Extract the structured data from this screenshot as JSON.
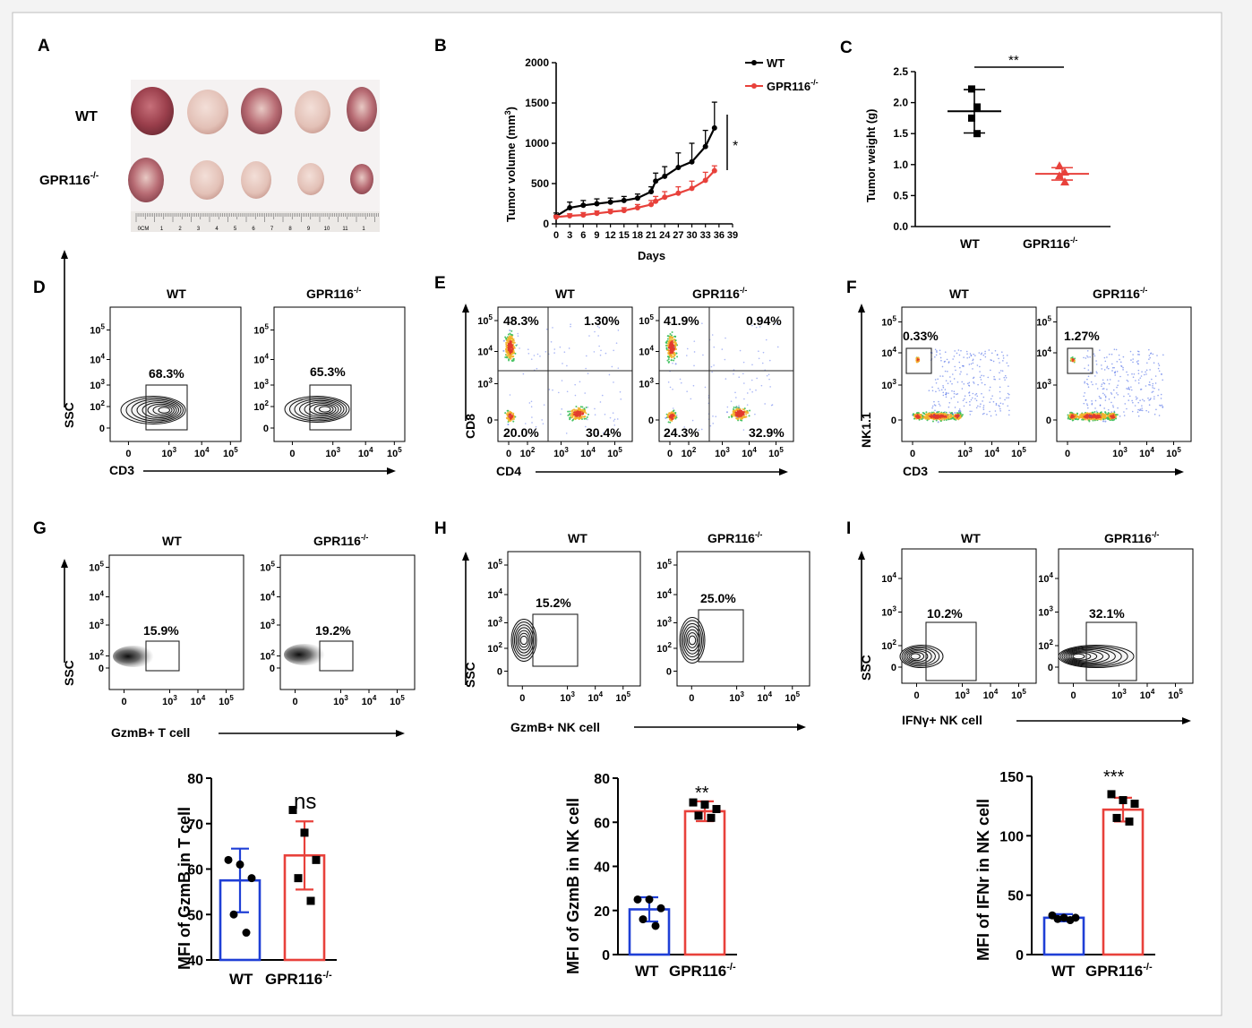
{
  "colors": {
    "wt": "#000000",
    "ko": "#e8413b",
    "bar_wt": "#1f3fd6",
    "bar_ko": "#e8413b"
  },
  "panelA": {
    "letter": "A",
    "row_wt": "WT",
    "row_ko": "GPR116",
    "ko_sup": "-/-",
    "ruler_ticks": [
      "0CM",
      "1",
      "2",
      "3",
      "4",
      "5",
      "6",
      "7",
      "8",
      "9",
      "10",
      "11",
      "1"
    ]
  },
  "panelB": {
    "letter": "B",
    "ylabel": "Tumor volume (mm",
    "ylabel_sup": "3",
    "ylabel_end": ")",
    "xlabel": "Days",
    "legend_wt": "WT",
    "legend_ko": "GPR116",
    "legend_sup": "-/-",
    "sig": "*"
  },
  "panelC": {
    "letter": "C",
    "ylabel": "Tumor weight (g)",
    "cat_wt": "WT",
    "cat_ko": "GPR116",
    "cat_sup": "-/-",
    "sig": "**"
  },
  "panelD": {
    "letter": "D",
    "title_wt": "WT",
    "title_ko": "GPR116",
    "title_sup": "-/-",
    "pct_wt": "68.3%",
    "pct_ko": "65.3%",
    "ylabel": "SSC",
    "xlabel": "CD3"
  },
  "panelE": {
    "letter": "E",
    "title_wt": "WT",
    "title_ko": "GPR116",
    "title_sup": "-/-",
    "wt_q": [
      "48.3%",
      "1.30%",
      "20.0%",
      "30.4%"
    ],
    "ko_q": [
      "41.9%",
      "0.94%",
      "24.3%",
      "32.9%"
    ],
    "ylabel": "CD8",
    "xlabel": "CD4"
  },
  "panelF": {
    "letter": "F",
    "title_wt": "WT",
    "title_ko": "GPR116",
    "title_sup": "-/-",
    "pct_wt": "0.33%",
    "pct_ko": "1.27%",
    "ylabel": "NK1.1",
    "xlabel": "CD3"
  },
  "panelG": {
    "letter": "G",
    "title_wt": "WT",
    "title_ko": "GPR116",
    "title_sup": "-/-",
    "pct_wt": "15.9%",
    "pct_ko": "19.2%",
    "ylabel": "SSC",
    "xlabel": "GzmB+ T cell",
    "bar_ylabel": "MFI of GzmB in T cell",
    "sig": "ns"
  },
  "panelH": {
    "letter": "H",
    "title_wt": "WT",
    "title_ko": "GPR116",
    "title_sup": "-/-",
    "pct_wt": "15.2%",
    "pct_ko": "25.0%",
    "ylabel": "SSC",
    "xlabel": "GzmB+ NK cell",
    "bar_ylabel": "MFI of GzmB in NK cell",
    "sig": "**"
  },
  "panelI": {
    "letter": "I",
    "title_wt": "WT",
    "title_ko": "GPR116",
    "title_sup": "-/-",
    "pct_wt": "10.2%",
    "pct_ko": "32.1%",
    "ylabel": "SSC",
    "xlabel": "IFNγ+ NK cell",
    "bar_ylabel": "MFI of IFNr in NK cell",
    "sig": "***"
  },
  "chart_data": [
    {
      "id": "B",
      "type": "line",
      "x": [
        0,
        3,
        6,
        9,
        12,
        15,
        18,
        21,
        24,
        27,
        30,
        33,
        36
      ],
      "series": [
        {
          "name": "WT",
          "values": [
            95,
            200,
            230,
            250,
            270,
            290,
            320,
            400,
            530,
            590,
            700,
            770,
            960,
            1190
          ],
          "x": [
            0,
            3,
            6,
            9,
            12,
            15,
            18,
            21,
            22,
            24,
            27,
            30,
            33,
            35
          ]
        },
        {
          "name": "GPR116-/-",
          "values": [
            85,
            100,
            110,
            130,
            150,
            165,
            200,
            240,
            280,
            330,
            380,
            440,
            540,
            660
          ],
          "x": [
            0,
            3,
            6,
            9,
            12,
            15,
            18,
            21,
            22,
            24,
            27,
            30,
            33,
            35
          ]
        }
      ],
      "wt_err": [
        40,
        70,
        60,
        60,
        50,
        50,
        50,
        60,
        100,
        120,
        180,
        230,
        200,
        320
      ],
      "ko_err": [
        20,
        25,
        30,
        30,
        30,
        35,
        40,
        50,
        60,
        70,
        80,
        90,
        100,
        60
      ],
      "xlabel": "Days",
      "ylim": [
        0,
        2000
      ],
      "yticks": [
        0,
        500,
        1000,
        1500,
        2000
      ],
      "xticks": [
        0,
        3,
        6,
        9,
        12,
        15,
        18,
        21,
        24,
        27,
        30,
        33,
        36,
        39
      ]
    },
    {
      "id": "C",
      "type": "scatter",
      "categories": [
        "WT",
        "GPR116-/-"
      ],
      "points": [
        [
          2.22,
          1.93,
          1.75,
          1.5
        ],
        [
          0.98,
          0.88,
          0.82,
          0.72
        ]
      ],
      "means": [
        1.86,
        0.85
      ],
      "sd": [
        0.35,
        0.1
      ],
      "ylim": [
        0,
        2.5
      ],
      "yticks": [
        0,
        0.5,
        1.0,
        1.5,
        2.0,
        2.5
      ]
    },
    {
      "id": "G",
      "type": "bar",
      "categories": [
        "WT",
        "GPR116-/-"
      ],
      "values": [
        57.5,
        63
      ],
      "err": [
        7,
        7.5
      ],
      "points": [
        [
          62,
          61,
          58,
          50,
          46
        ],
        [
          73,
          68,
          62,
          58,
          53
        ]
      ],
      "ylim": [
        40,
        80
      ],
      "yticks": [
        40,
        50,
        60,
        70,
        80
      ]
    },
    {
      "id": "H",
      "type": "bar",
      "categories": [
        "WT",
        "GPR116-/-"
      ],
      "values": [
        20.5,
        65
      ],
      "err": [
        5.5,
        4.5
      ],
      "points": [
        [
          25,
          25,
          21,
          16,
          13
        ],
        [
          69,
          68,
          66,
          63,
          62
        ]
      ],
      "ylim": [
        0,
        80
      ],
      "yticks": [
        0,
        20,
        40,
        60,
        80
      ]
    },
    {
      "id": "I",
      "type": "bar",
      "categories": [
        "WT",
        "GPR116-/-"
      ],
      "values": [
        31,
        122
      ],
      "err": [
        3,
        10
      ],
      "points": [
        [
          33,
          31,
          31,
          30,
          29
        ],
        [
          135,
          130,
          127,
          115,
          112
        ]
      ],
      "ylim": [
        0,
        150
      ],
      "yticks": [
        0,
        50,
        100,
        150
      ]
    }
  ]
}
